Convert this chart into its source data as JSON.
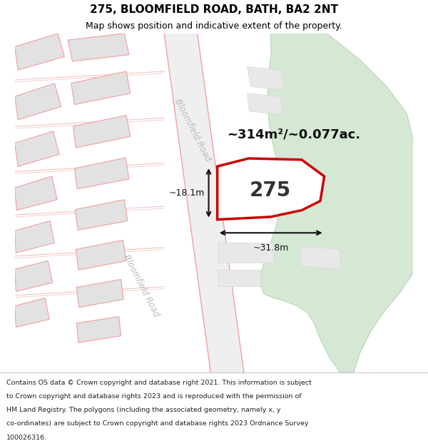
{
  "title": "275, BLOOMFIELD ROAD, BATH, BA2 2NT",
  "subtitle": "Map shows position and indicative extent of the property.",
  "footer_lines": [
    "Contains OS data © Crown copyright and database right 2021. This information is subject",
    "to Crown copyright and database rights 2023 and is reproduced with the permission of",
    "HM Land Registry. The polygons (including the associated geometry, namely x, y",
    "co-ordinates) are subject to Crown copyright and database rights 2023 Ordnance Survey",
    "100026316."
  ],
  "area_label": "~314m²/~0.077ac.",
  "number_label": "275",
  "width_label": "~31.8m",
  "height_label": "~18.1m",
  "road_label_upper": "Bloomfield Road",
  "road_label_lower": "Bloomfield Road",
  "map_bg": "#ffffff",
  "road_fill": "#efefef",
  "road_line_color": "#f0a0a0",
  "green_fill": "#d4e8d4",
  "green_edge": "#b8d8b8",
  "property_fill": "#ffffff",
  "property_outline": "#cc0000",
  "building_fill": "#e2e2e2",
  "building_edge": "#f0a0a0",
  "dim_line_color": "#111111",
  "road_text_color": "#bbbbbb",
  "title_fontsize": 11,
  "subtitle_fontsize": 9,
  "footer_fontsize": 6.8,
  "area_fontsize": 13,
  "number_fontsize": 20,
  "dim_fontsize": 9,
  "road_fontsize": 8.5
}
